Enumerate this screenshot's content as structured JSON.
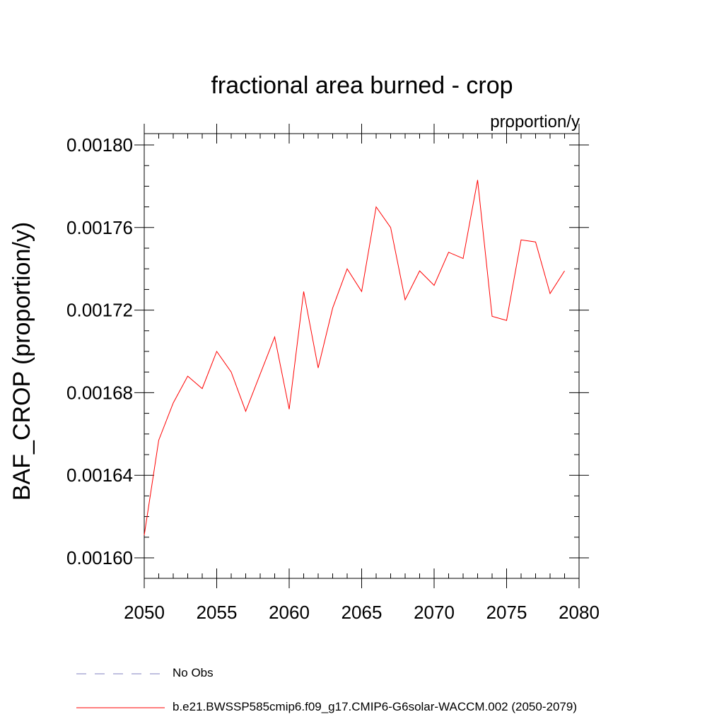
{
  "chart_data": {
    "type": "line",
    "title": "fractional area burned - crop",
    "units": "proportion/y",
    "xlabel": "",
    "ylabel": "BAF_CROP  (proportion/y)",
    "xlim": [
      2050,
      2080
    ],
    "ylim": [
      0.00159,
      0.001805
    ],
    "x_ticks": [
      2050,
      2055,
      2060,
      2065,
      2070,
      2075,
      2080
    ],
    "x_tick_labels": [
      "2050",
      "2055",
      "2060",
      "2065",
      "2070",
      "2075",
      "2080"
    ],
    "y_ticks": [
      0.0016,
      0.00164,
      0.00168,
      0.00172,
      0.00176,
      0.0018
    ],
    "y_tick_labels": [
      "0.00160",
      "0.00164",
      "0.00168",
      "0.00172",
      "0.00176",
      "0.00180"
    ],
    "grid": false,
    "series": [
      {
        "name": "b.e21.BWSSP585cmip6.f09_g17.CMIP6-G6solar-WACCM.002 (2050-2079)",
        "color": "#ff0000",
        "dash": "solid",
        "x": [
          2050,
          2051,
          2052,
          2053,
          2054,
          2055,
          2056,
          2057,
          2058,
          2059,
          2060,
          2061,
          2062,
          2063,
          2064,
          2065,
          2066,
          2067,
          2068,
          2069,
          2070,
          2071,
          2072,
          2073,
          2074,
          2075,
          2076,
          2077,
          2078,
          2079
        ],
        "values": [
          0.001611,
          0.001657,
          0.001675,
          0.001688,
          0.001682,
          0.0017,
          0.00169,
          0.001671,
          0.001689,
          0.001707,
          0.001672,
          0.001729,
          0.001692,
          0.001721,
          0.00174,
          0.001729,
          0.00177,
          0.00176,
          0.001725,
          0.001739,
          0.001732,
          0.001748,
          0.001745,
          0.001783,
          0.001717,
          0.001715,
          0.001754,
          0.001753,
          0.001728,
          0.001739
        ]
      }
    ],
    "legend": [
      {
        "label": "No Obs",
        "color": "#8080c0",
        "dash": "dashed"
      },
      {
        "label": "b.e21.BWSSP585cmip6.f09_g17.CMIP6-G6solar-WACCM.002 (2050-2079)",
        "color": "#ff0000",
        "dash": "solid"
      }
    ]
  }
}
